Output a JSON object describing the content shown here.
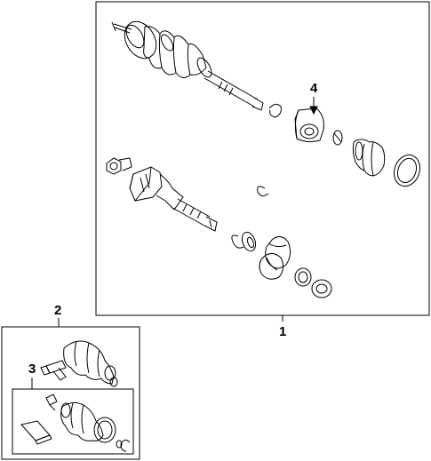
{
  "callouts": {
    "one": "1",
    "two": "2",
    "three": "3",
    "four": "4"
  }
}
